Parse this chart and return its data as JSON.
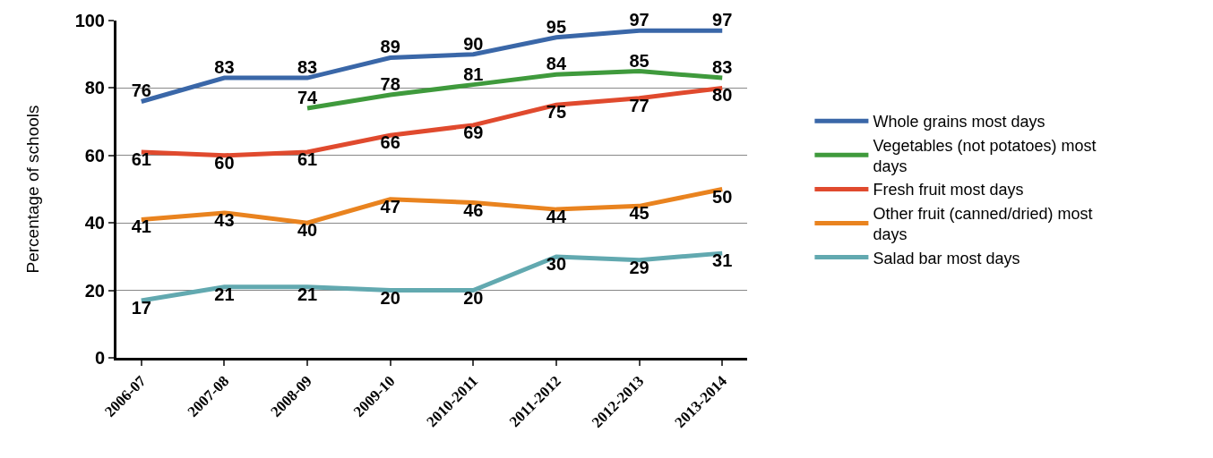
{
  "chart_data": {
    "type": "line",
    "ylabel": "Percentage of schools",
    "categories": [
      "2006-07",
      "2007-08",
      "2008-09",
      "2009-10",
      "2010-2011",
      "2011-2012",
      "2012-2013",
      "2013-2014"
    ],
    "series": [
      {
        "name": "Whole grains most days",
        "color": "#3a67a8",
        "values": [
          76,
          83,
          83,
          89,
          90,
          95,
          97,
          97
        ]
      },
      {
        "name": "Vegetables (not potatoes) most days",
        "color": "#3f9a3c",
        "values": [
          null,
          null,
          74,
          78,
          81,
          84,
          85,
          83
        ]
      },
      {
        "name": "Fresh fruit most days",
        "color": "#e04a2e",
        "values": [
          61,
          60,
          61,
          66,
          69,
          75,
          77,
          80
        ]
      },
      {
        "name": "Other fruit (canned/dried) most days",
        "color": "#e9831f",
        "values": [
          41,
          43,
          40,
          47,
          46,
          44,
          45,
          50
        ]
      },
      {
        "name": "Salad bar most days",
        "color": "#62a9b0",
        "values": [
          17,
          21,
          21,
          20,
          20,
          30,
          29,
          31
        ]
      }
    ],
    "ylim": [
      0,
      100
    ],
    "yticks": [
      0,
      20,
      40,
      60,
      80,
      100
    ],
    "grid": "y",
    "legend": "right",
    "data_labels": true,
    "marker": "none",
    "line_style": "solid"
  }
}
